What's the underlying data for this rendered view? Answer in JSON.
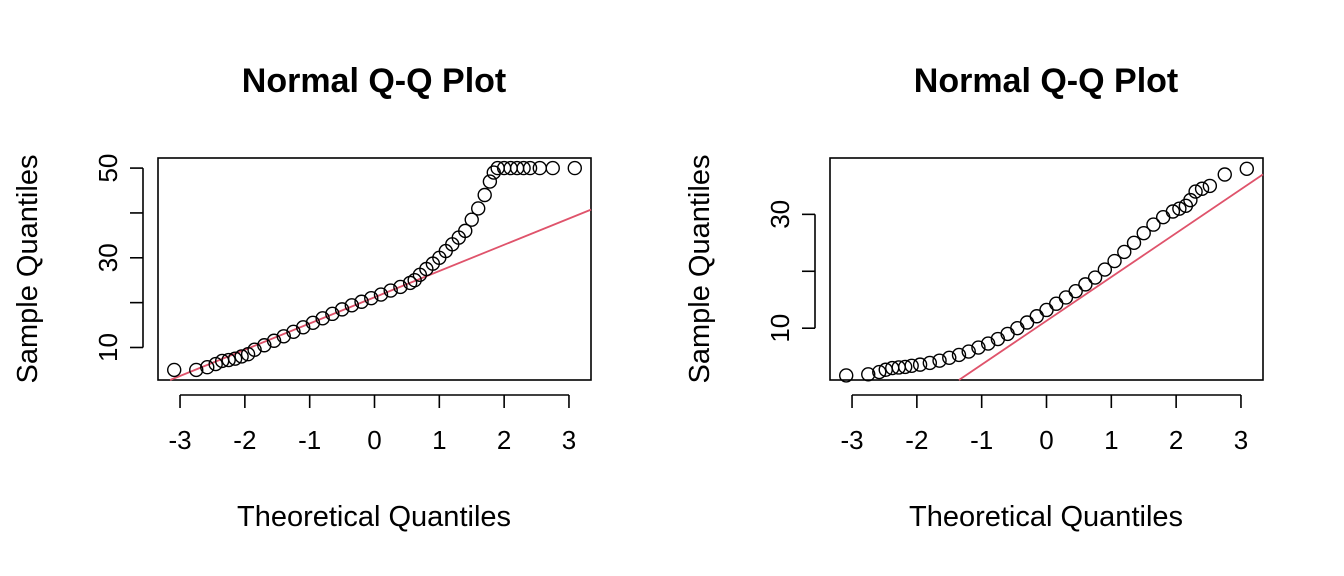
{
  "colors": {
    "points": "#000000",
    "ref_line": "#DF536B",
    "background": "#ffffff"
  },
  "chart_data": [
    {
      "type": "scatter",
      "title": "Normal Q-Q Plot",
      "xlabel": "Theoretical Quantiles",
      "ylabel": "Sample Quantiles",
      "xlim": [
        -3.34,
        3.34
      ],
      "ylim": [
        2.75,
        52.25
      ],
      "xticks": [
        -3,
        -2,
        -1,
        0,
        1,
        2,
        3
      ],
      "xtick_labels": [
        "-3",
        "-2",
        "-1",
        "0",
        "1",
        "2",
        "3"
      ],
      "yticks": [
        10,
        20,
        30,
        40,
        50
      ],
      "ytick_labels": [
        "10",
        "",
        "30",
        "",
        "50"
      ],
      "grid": false,
      "series": [
        {
          "kind": "points",
          "x": [
            -3.09,
            -2.75,
            -2.58,
            -2.45,
            -2.35,
            -2.25,
            -2.15,
            -2.05,
            -1.95,
            -1.85,
            -1.7,
            -1.55,
            -1.4,
            -1.25,
            -1.1,
            -0.95,
            -0.8,
            -0.65,
            -0.5,
            -0.35,
            -0.2,
            -0.05,
            0.1,
            0.25,
            0.4,
            0.55,
            0.62,
            0.7,
            0.8,
            0.9,
            1.0,
            1.1,
            1.2,
            1.3,
            1.4,
            1.5,
            1.6,
            1.7,
            1.78,
            1.84,
            1.9,
            2.0,
            2.1,
            2.2,
            2.3,
            2.4,
            2.55,
            2.75,
            3.09
          ],
          "y": [
            5.0,
            5.0,
            5.6,
            6.3,
            7.0,
            7.2,
            7.5,
            8.0,
            8.5,
            9.5,
            10.5,
            11.5,
            12.5,
            13.5,
            14.5,
            15.5,
            16.5,
            17.5,
            18.5,
            19.4,
            20.2,
            21.0,
            21.8,
            22.7,
            23.5,
            24.4,
            25.0,
            26.2,
            27.5,
            28.7,
            30.0,
            31.5,
            33.0,
            34.5,
            36.0,
            38.5,
            41.0,
            44.0,
            47.0,
            49.0,
            50.0,
            50.0,
            50.0,
            50.0,
            50.0,
            50.0,
            50.0,
            50.0,
            50.0
          ]
        },
        {
          "kind": "qqline",
          "intercept": 21.2,
          "slope": 5.85
        }
      ]
    },
    {
      "type": "scatter",
      "title": "Normal Q-Q Plot",
      "xlabel": "Theoretical Quantiles",
      "ylabel": "Sample Quantiles",
      "xlim": [
        -3.34,
        3.34
      ],
      "ylim": [
        0.9,
        39.9
      ],
      "xticks": [
        -3,
        -2,
        -1,
        0,
        1,
        2,
        3
      ],
      "xtick_labels": [
        "-3",
        "-2",
        "-1",
        "0",
        "1",
        "2",
        "3"
      ],
      "yticks": [
        10,
        20,
        30
      ],
      "ytick_labels": [
        "10",
        "",
        "30"
      ],
      "grid": false,
      "series": [
        {
          "kind": "points",
          "x": [
            -3.09,
            -2.75,
            -2.58,
            -2.48,
            -2.38,
            -2.28,
            -2.18,
            -2.08,
            -1.95,
            -1.8,
            -1.65,
            -1.5,
            -1.35,
            -1.2,
            -1.05,
            -0.9,
            -0.75,
            -0.6,
            -0.45,
            -0.3,
            -0.15,
            0.0,
            0.15,
            0.3,
            0.45,
            0.6,
            0.75,
            0.9,
            1.05,
            1.2,
            1.35,
            1.5,
            1.65,
            1.8,
            1.95,
            2.05,
            2.15,
            2.22,
            2.3,
            2.4,
            2.52,
            2.75,
            3.09
          ],
          "y": [
            1.7,
            1.9,
            2.3,
            2.7,
            3.0,
            3.1,
            3.2,
            3.4,
            3.6,
            3.9,
            4.3,
            4.8,
            5.3,
            5.9,
            6.6,
            7.3,
            8.1,
            9.0,
            10.0,
            11.0,
            12.1,
            13.2,
            14.3,
            15.4,
            16.5,
            17.7,
            18.9,
            20.3,
            21.8,
            23.4,
            25.0,
            26.7,
            28.2,
            29.5,
            30.5,
            31.0,
            31.5,
            32.5,
            34.0,
            34.5,
            35.0,
            37.0,
            38.0
          ]
        },
        {
          "kind": "qqline",
          "intercept": 11.3,
          "slope": 7.7
        }
      ]
    }
  ]
}
